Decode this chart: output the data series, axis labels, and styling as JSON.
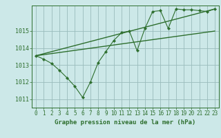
{
  "background_color": "#cce8e8",
  "grid_color": "#99bbbb",
  "line_color": "#2d6e2d",
  "xlabel": "Graphe pression niveau de la mer (hPa)",
  "ylim": [
    1010.5,
    1016.5
  ],
  "xlim": [
    -0.5,
    23.5
  ],
  "xticks": [
    0,
    1,
    2,
    3,
    4,
    5,
    6,
    7,
    8,
    9,
    10,
    11,
    12,
    13,
    14,
    15,
    16,
    17,
    18,
    19,
    20,
    21,
    22,
    23
  ],
  "yticks": [
    1011,
    1012,
    1013,
    1014,
    1015
  ],
  "data_x": [
    0,
    1,
    2,
    3,
    4,
    5,
    6,
    7,
    8,
    9,
    10,
    11,
    12,
    13,
    14,
    15,
    16,
    17,
    18,
    19,
    20,
    21,
    22,
    23
  ],
  "data_y_main": [
    1013.55,
    1013.35,
    1013.1,
    1012.7,
    1012.25,
    1011.75,
    1011.1,
    1012.0,
    1013.15,
    1013.8,
    1014.45,
    1014.9,
    1015.0,
    1013.85,
    1015.15,
    1016.15,
    1016.2,
    1015.15,
    1016.3,
    1016.25,
    1016.25,
    1016.2,
    1016.15,
    1016.3
  ],
  "trend1_x": [
    0,
    23
  ],
  "trend1_y": [
    1013.55,
    1015.0
  ],
  "trend2_x": [
    0,
    23
  ],
  "trend2_y": [
    1013.55,
    1016.3
  ],
  "tick_fontsize": 5.5,
  "label_fontsize": 6.5
}
